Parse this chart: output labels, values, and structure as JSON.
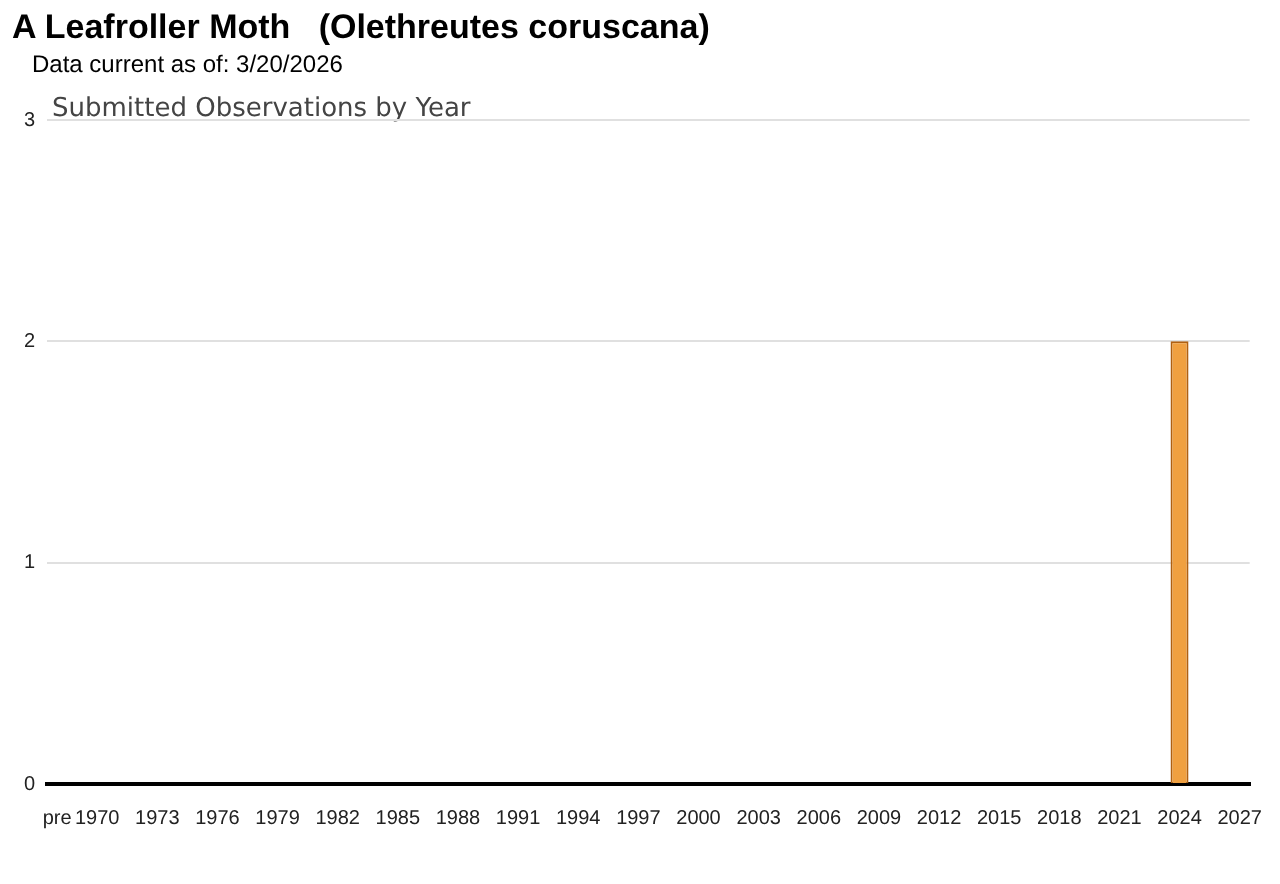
{
  "chart_data": {
    "type": "bar",
    "title": "A Leafroller Moth   (Olethreutes coruscana)",
    "subtitle": "Data current as of: 3/20/2026",
    "annotations": [
      "Submitted Observations by Year"
    ],
    "categories": [
      "pre",
      null,
      "1970",
      null,
      null,
      "1973",
      null,
      null,
      "1976",
      null,
      null,
      "1979",
      null,
      null,
      "1982",
      null,
      null,
      "1985",
      null,
      null,
      "1988",
      null,
      null,
      "1991",
      null,
      null,
      "1994",
      null,
      null,
      "1997",
      null,
      null,
      "2000",
      null,
      null,
      "2003",
      null,
      null,
      "2006",
      null,
      null,
      "2009",
      null,
      null,
      "2012",
      null,
      null,
      "2015",
      null,
      null,
      "2018",
      null,
      null,
      "2021",
      null,
      null,
      "2024",
      null,
      null,
      "2027"
    ],
    "values": [
      0,
      0,
      0,
      0,
      0,
      0,
      0,
      0,
      0,
      0,
      0,
      0,
      0,
      0,
      0,
      0,
      0,
      0,
      0,
      0,
      0,
      0,
      0,
      0,
      0,
      0,
      0,
      0,
      0,
      0,
      0,
      0,
      0,
      0,
      0,
      0,
      0,
      0,
      0,
      0,
      0,
      0,
      0,
      0,
      0,
      0,
      0,
      0,
      0,
      0,
      0,
      0,
      0,
      0,
      0,
      0,
      2,
      0,
      0,
      0
    ],
    "color": "#f0a040",
    "ylim": [
      0,
      3
    ],
    "yticks": [
      0,
      1,
      2,
      3
    ],
    "grid": "y"
  }
}
